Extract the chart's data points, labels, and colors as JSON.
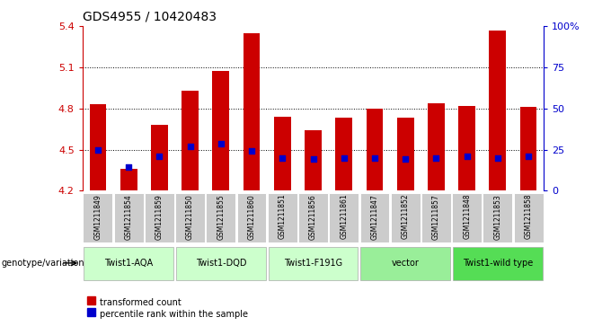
{
  "title": "GDS4955 / 10420483",
  "samples": [
    "GSM1211849",
    "GSM1211854",
    "GSM1211859",
    "GSM1211850",
    "GSM1211855",
    "GSM1211860",
    "GSM1211851",
    "GSM1211856",
    "GSM1211861",
    "GSM1211847",
    "GSM1211852",
    "GSM1211857",
    "GSM1211848",
    "GSM1211853",
    "GSM1211858"
  ],
  "bar_values": [
    4.83,
    4.36,
    4.68,
    4.93,
    5.07,
    5.35,
    4.74,
    4.64,
    4.73,
    4.8,
    4.73,
    4.84,
    4.82,
    5.37,
    4.81
  ],
  "blue_values": [
    4.5,
    4.37,
    4.45,
    4.52,
    4.54,
    4.49,
    4.44,
    4.43,
    4.44,
    4.44,
    4.43,
    4.44,
    4.45,
    4.44,
    4.45
  ],
  "ymin": 4.2,
  "ymax": 5.4,
  "y_ticks": [
    4.2,
    4.5,
    4.8,
    5.1,
    5.4
  ],
  "y2min": 0,
  "y2max": 100,
  "y2_ticks": [
    0,
    25,
    50,
    75,
    100
  ],
  "y2_tick_labels": [
    "0",
    "25",
    "50",
    "75",
    "100%"
  ],
  "bar_color": "#cc0000",
  "blue_color": "#0000cc",
  "grid_lines": [
    4.5,
    4.8,
    5.1
  ],
  "groups": [
    {
      "label": "Twist1-AQA",
      "start": 0,
      "end": 2,
      "color": "#ccffcc"
    },
    {
      "label": "Twist1-DQD",
      "start": 3,
      "end": 5,
      "color": "#ccffcc"
    },
    {
      "label": "Twist1-F191G",
      "start": 6,
      "end": 8,
      "color": "#ccffcc"
    },
    {
      "label": "vector",
      "start": 9,
      "end": 11,
      "color": "#99ee99"
    },
    {
      "label": "Twist1-wild type",
      "start": 12,
      "end": 14,
      "color": "#55dd55"
    }
  ],
  "genotype_label": "genotype/variation",
  "legend_red": "transformed count",
  "legend_blue": "percentile rank within the sample",
  "bar_width": 0.55,
  "sample_bg_color": "#cccccc",
  "bar_color_left": "#cc0000",
  "bar_color_right": "#0000cc"
}
